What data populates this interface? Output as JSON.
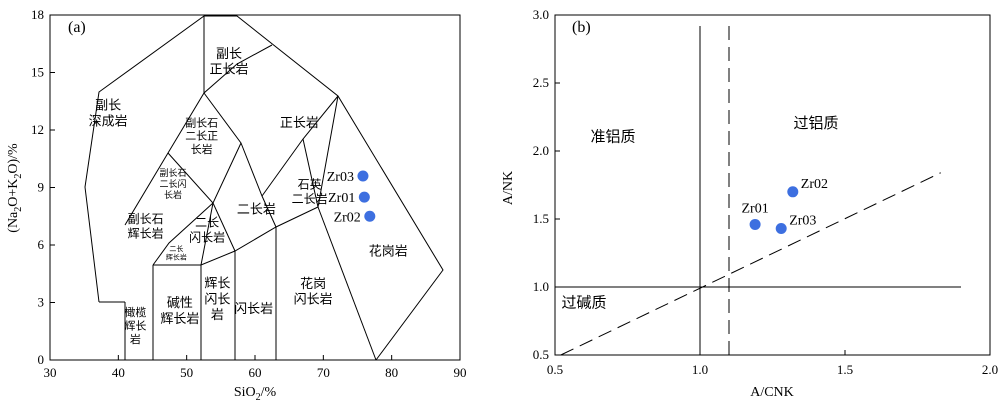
{
  "chart_data": [
    {
      "type": "scatter",
      "panel_label": "(a)",
      "xlabel": "SiO2/%",
      "ylabel": "(Na2O+K2O)/%",
      "xlim": [
        30,
        90
      ],
      "ylim": [
        0,
        18
      ],
      "xticks": [
        30,
        40,
        50,
        60,
        70,
        80,
        90
      ],
      "yticks": [
        0,
        3,
        6,
        9,
        12,
        15,
        18
      ],
      "x_tick_labels": [
        "30",
        "40",
        "50",
        "60",
        "70",
        "80",
        "90"
      ],
      "y_tick_labels": [
        "0",
        "3",
        "6",
        "9",
        "12",
        "15",
        "18"
      ],
      "fields": [
        {
          "name": "副长深成岩",
          "lines": [
            "副长",
            "深成岩"
          ],
          "x": 38.5,
          "y": 12.9,
          "size": 13
        },
        {
          "name": "副长正长岩",
          "lines": [
            "副长",
            "正长岩"
          ],
          "x": 56.2,
          "y": 15.6,
          "size": 13
        },
        {
          "name": "副长石二长正长岩",
          "lines": [
            "副长石",
            "二长正",
            "长岩"
          ],
          "x": 52.2,
          "y": 11.7,
          "size": 11
        },
        {
          "name": "正长岩",
          "lines": [
            "正长岩"
          ],
          "x": 66.5,
          "y": 12.4,
          "size": 13
        },
        {
          "name": "副长石二长闪长岩",
          "lines": [
            "副长石",
            "二长闪",
            "长岩"
          ],
          "x": 48.0,
          "y": 9.2,
          "size": 9
        },
        {
          "name": "副长石辉长岩",
          "lines": [
            "副长石",
            "辉长岩"
          ],
          "x": 44.0,
          "y": 7.0,
          "size": 12
        },
        {
          "name": "二长闪长岩",
          "lines": [
            "二长",
            "闪长岩"
          ],
          "x": 53.0,
          "y": 6.8,
          "size": 12
        },
        {
          "name": "二长岩",
          "lines": [
            "二长岩"
          ],
          "x": 60.2,
          "y": 7.9,
          "size": 13
        },
        {
          "name": "石英二长岩",
          "lines": [
            "石英",
            "二长岩"
          ],
          "x": 68.0,
          "y": 8.8,
          "size": 12
        },
        {
          "name": "二长辉长岩",
          "lines": [
            "二长",
            "辉长岩"
          ],
          "x": 48.5,
          "y": 5.6,
          "size": 7
        },
        {
          "name": "碱性辉长岩",
          "lines": [
            "碱性",
            "辉长岩"
          ],
          "x": 49.0,
          "y": 2.6,
          "size": 13
        },
        {
          "name": "橄榄辉长岩",
          "lines": [
            "橄榄",
            "辉长",
            "岩"
          ],
          "x": 42.5,
          "y": 1.8,
          "size": 11
        },
        {
          "name": "辉长闪长岩",
          "lines": [
            "辉长",
            "闪长",
            "岩"
          ],
          "x": 54.5,
          "y": 3.2,
          "size": 13
        },
        {
          "name": "闪长岩",
          "lines": [
            "闪长岩"
          ],
          "x": 59.8,
          "y": 2.7,
          "size": 13
        },
        {
          "name": "花岗闪长岩",
          "lines": [
            "花岗",
            "闪长岩"
          ],
          "x": 68.5,
          "y": 3.6,
          "size": 13
        },
        {
          "name": "花岗岩",
          "lines": [
            "花岗岩"
          ],
          "x": 79.5,
          "y": 5.7,
          "size": 13
        }
      ],
      "points": [
        {
          "label": "Zr03",
          "x": 75.8,
          "y": 9.6
        },
        {
          "label": "Zr01",
          "x": 76.0,
          "y": 8.5
        },
        {
          "label": "Zr02",
          "x": 76.8,
          "y": 7.5
        }
      ]
    },
    {
      "type": "scatter",
      "panel_label": "(b)",
      "xlabel": "A/CNK",
      "ylabel": "A/NK",
      "xlim": [
        0.5,
        2.0
      ],
      "ylim": [
        0.5,
        3.0
      ],
      "xticks": [
        0.5,
        1.0,
        1.5,
        2.0
      ],
      "yticks": [
        0.5,
        1.0,
        1.5,
        2.0,
        2.5,
        3.0
      ],
      "x_tick_labels": [
        "0.5",
        "1.0",
        "1.5",
        "2.0"
      ],
      "y_tick_labels": [
        "0.5",
        "1.0",
        "1.5",
        "2.0",
        "2.5",
        "3.0"
      ],
      "regions": [
        {
          "name": "准铝质",
          "x": 0.7,
          "y": 2.07
        },
        {
          "name": "过铝质",
          "x": 1.4,
          "y": 2.17
        },
        {
          "name": "过碱质",
          "x": 0.6,
          "y": 0.85
        }
      ],
      "points": [
        {
          "label": "Zr02",
          "x": 1.32,
          "y": 1.7
        },
        {
          "label": "Zr01",
          "x": 1.19,
          "y": 1.46
        },
        {
          "label": "Zr03",
          "x": 1.28,
          "y": 1.43
        }
      ]
    }
  ]
}
